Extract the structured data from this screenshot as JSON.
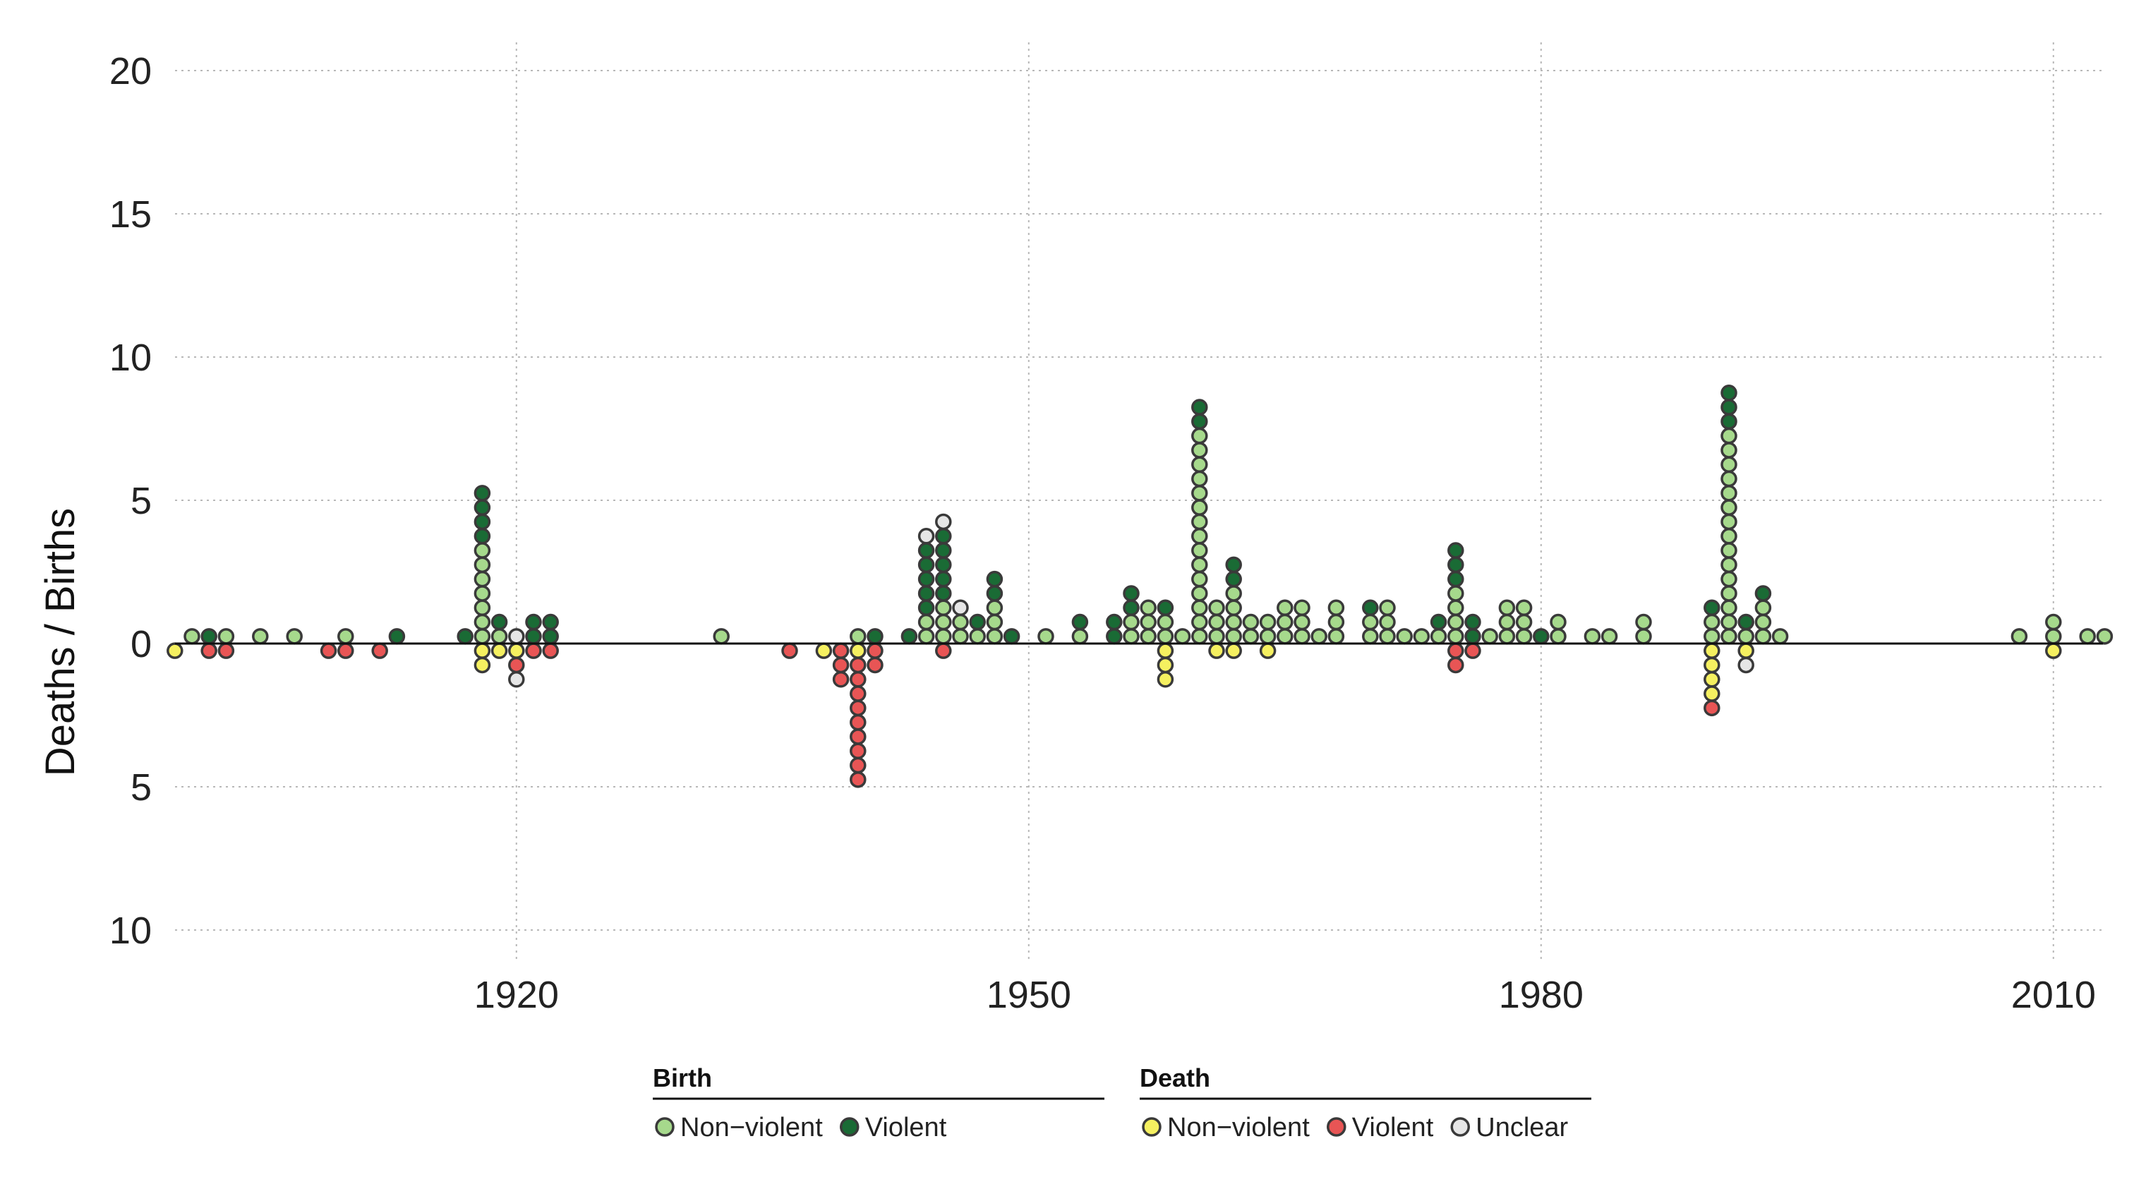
{
  "chart_data": {
    "type": "scatter",
    "subtype": "stacked-dot-plot",
    "title": "",
    "xlabel": "",
    "ylabel": "Deaths / Births",
    "xlim": [
      1900,
      2012
    ],
    "ylim": [
      -10,
      20
    ],
    "x_ticks": [
      1920,
      1950,
      1980,
      2010
    ],
    "y_ticks": [
      {
        "value": 20,
        "label": "20"
      },
      {
        "value": 15,
        "label": "15"
      },
      {
        "value": 10,
        "label": "10"
      },
      {
        "value": 5,
        "label": "5"
      },
      {
        "value": 0,
        "label": "0"
      },
      {
        "value": -5,
        "label": "5"
      },
      {
        "value": -10,
        "label": "10"
      }
    ],
    "grid": true,
    "legend_placement": "bottom",
    "legend": [
      {
        "title": "Birth",
        "entries": [
          {
            "label": "Non−violent",
            "color": "#a6d98c"
          },
          {
            "label": "Violent",
            "color": "#1a6b35"
          }
        ]
      },
      {
        "title": "Death",
        "entries": [
          {
            "label": "Non−violent",
            "color": "#f5f060"
          },
          {
            "label": "Violent",
            "color": "#e85555"
          },
          {
            "label": "Unclear",
            "color": "#e6e6e6"
          }
        ]
      }
    ],
    "series": [
      {
        "name": "Birth Non−violent",
        "color": "#a6d98c",
        "points": [
          [
            1901,
            1
          ],
          [
            1903,
            1
          ],
          [
            1905,
            1
          ],
          [
            1907,
            1
          ],
          [
            1910,
            1
          ],
          [
            1918,
            7
          ],
          [
            1919,
            1
          ],
          [
            1932,
            1
          ],
          [
            1940,
            1
          ],
          [
            1944,
            2
          ],
          [
            1945,
            3
          ],
          [
            1946,
            2
          ],
          [
            1947,
            1
          ],
          [
            1948,
            3
          ],
          [
            1951,
            1
          ],
          [
            1953,
            1
          ],
          [
            1956,
            2
          ],
          [
            1957,
            3
          ],
          [
            1958,
            2
          ],
          [
            1959,
            1
          ],
          [
            1960,
            15
          ],
          [
            1961,
            3
          ],
          [
            1962,
            4
          ],
          [
            1963,
            2
          ],
          [
            1964,
            2
          ],
          [
            1965,
            3
          ],
          [
            1966,
            3
          ],
          [
            1967,
            1
          ],
          [
            1968,
            3
          ],
          [
            1970,
            2
          ],
          [
            1971,
            3
          ],
          [
            1972,
            1
          ],
          [
            1973,
            1
          ],
          [
            1974,
            1
          ],
          [
            1975,
            4
          ],
          [
            1977,
            1
          ],
          [
            1978,
            3
          ],
          [
            1979,
            3
          ],
          [
            1981,
            2
          ],
          [
            1983,
            1
          ],
          [
            1984,
            1
          ],
          [
            1986,
            2
          ],
          [
            1990,
            2
          ],
          [
            1991,
            15
          ],
          [
            1992,
            1
          ],
          [
            1993,
            3
          ],
          [
            1994,
            1
          ],
          [
            2008,
            1
          ],
          [
            2010,
            2
          ],
          [
            2012,
            1
          ],
          [
            2013,
            1
          ]
        ]
      },
      {
        "name": "Birth Violent",
        "color": "#1a6b35",
        "points": [
          [
            1902,
            1
          ],
          [
            1913,
            1
          ],
          [
            1917,
            1
          ],
          [
            1918,
            4
          ],
          [
            1919,
            1
          ],
          [
            1921,
            2
          ],
          [
            1922,
            2
          ],
          [
            1941,
            1
          ],
          [
            1943,
            1
          ],
          [
            1944,
            5
          ],
          [
            1945,
            5
          ],
          [
            1947,
            1
          ],
          [
            1948,
            2
          ],
          [
            1949,
            1
          ],
          [
            1953,
            1
          ],
          [
            1955,
            2
          ],
          [
            1956,
            2
          ],
          [
            1958,
            1
          ],
          [
            1960,
            2
          ],
          [
            1962,
            2
          ],
          [
            1970,
            1
          ],
          [
            1974,
            1
          ],
          [
            1975,
            3
          ],
          [
            1976,
            2
          ],
          [
            1980,
            1
          ],
          [
            1990,
            1
          ],
          [
            1991,
            3
          ],
          [
            1992,
            1
          ],
          [
            1993,
            1
          ]
        ]
      },
      {
        "name": "Birth Unclear",
        "color": "#e6e6e6",
        "points": [
          [
            1920,
            1
          ],
          [
            1944,
            1
          ],
          [
            1945,
            1
          ],
          [
            1946,
            1
          ]
        ]
      },
      {
        "name": "Death Non−violent",
        "color": "#f5f060",
        "points": [
          [
            1900,
            -1
          ],
          [
            1918,
            -2
          ],
          [
            1919,
            -1
          ],
          [
            1920,
            -1
          ],
          [
            1938,
            -1
          ],
          [
            1940,
            -1
          ],
          [
            1958,
            -3
          ],
          [
            1961,
            -1
          ],
          [
            1962,
            -1
          ],
          [
            1964,
            -1
          ],
          [
            1990,
            -4
          ],
          [
            1992,
            -1
          ],
          [
            2010,
            -1
          ]
        ]
      },
      {
        "name": "Death Violent",
        "color": "#e85555",
        "points": [
          [
            1902,
            -1
          ],
          [
            1903,
            -1
          ],
          [
            1909,
            -1
          ],
          [
            1910,
            -1
          ],
          [
            1912,
            -1
          ],
          [
            1920,
            -1
          ],
          [
            1921,
            -1
          ],
          [
            1922,
            -1
          ],
          [
            1936,
            -1
          ],
          [
            1939,
            -3
          ],
          [
            1940,
            -9
          ],
          [
            1941,
            -2
          ],
          [
            1945,
            -1
          ],
          [
            1975,
            -2
          ],
          [
            1976,
            -1
          ],
          [
            1990,
            -1
          ]
        ]
      },
      {
        "name": "Death Unclear",
        "color": "#e6e6e6",
        "points": [
          [
            1920,
            -1
          ],
          [
            1992,
            -1
          ]
        ]
      }
    ]
  }
}
